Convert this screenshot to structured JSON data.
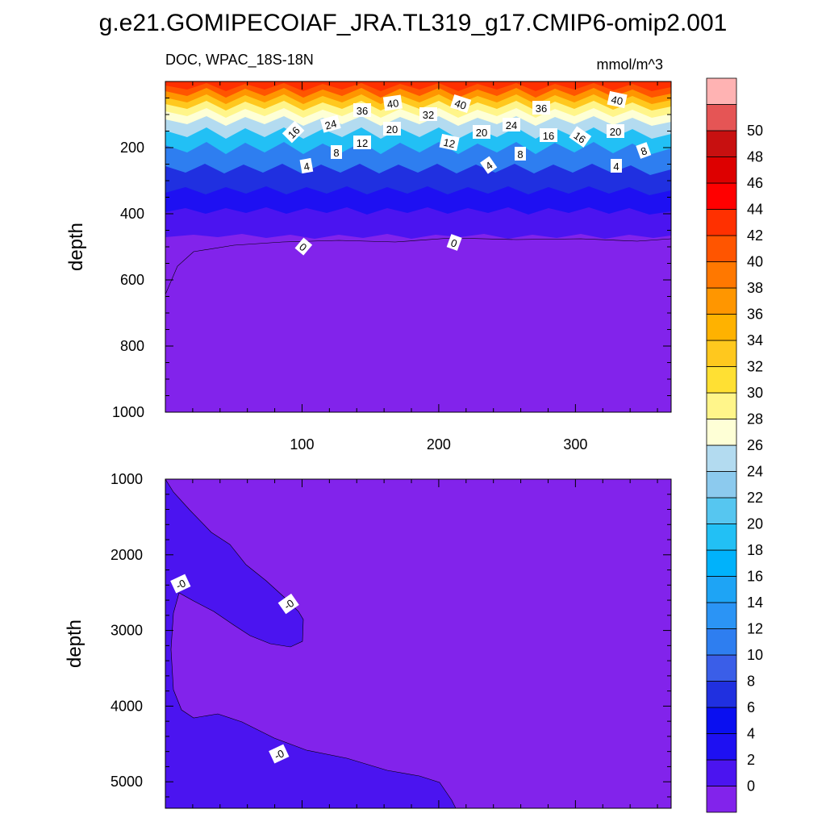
{
  "chart_data": [
    {
      "type": "heatmap",
      "title": "g.e21.GOMIPECOIAF_JRA.TL319_g17.CMIP6-omip2.001",
      "subtitle_left": "DOC, WPAC_18S-18N",
      "subtitle_right": "mmol/m^3",
      "panel": "upper",
      "ylabel": "depth",
      "xlabel": "",
      "xlim": [
        0,
        370
      ],
      "ylim": [
        1000,
        0
      ],
      "x_ticks": [
        100,
        200,
        300
      ],
      "y_ticks": [
        200,
        400,
        600,
        800,
        1000
      ],
      "contour_levels": [
        0,
        2,
        4,
        6,
        8,
        10,
        12,
        14,
        16,
        18,
        20,
        22,
        24,
        26,
        28,
        30,
        32,
        34,
        36,
        38,
        40,
        42,
        44,
        46,
        48,
        50
      ],
      "contour_labels": [
        "36",
        "40",
        "32",
        "40",
        "36",
        "40",
        "16",
        "24",
        "20",
        "20",
        "24",
        "16",
        "16",
        "20",
        "8",
        "12",
        "12",
        "8",
        "8",
        "4",
        "4",
        "4",
        "0",
        "0"
      ],
      "approx_profile": [
        {
          "depth": 0,
          "value": 44
        },
        {
          "depth": 50,
          "value": 40
        },
        {
          "depth": 100,
          "value": 32
        },
        {
          "depth": 150,
          "value": 20
        },
        {
          "depth": 200,
          "value": 10
        },
        {
          "depth": 250,
          "value": 4
        },
        {
          "depth": 300,
          "value": 1
        },
        {
          "depth": 500,
          "value": 0
        },
        {
          "depth": 1000,
          "value": -1
        }
      ]
    },
    {
      "type": "heatmap",
      "panel": "lower",
      "ylabel": "depth",
      "xlabel": "",
      "xlim": [
        0,
        370
      ],
      "ylim": [
        5350,
        1000
      ],
      "y_ticks": [
        1000,
        2000,
        3000,
        4000,
        5000
      ],
      "contour_labels": [
        "-0",
        "-0",
        "-0"
      ]
    }
  ],
  "colorbar": {
    "tick_labels": [
      "0",
      "2",
      "4",
      "6",
      "8",
      "10",
      "12",
      "14",
      "16",
      "18",
      "20",
      "22",
      "24",
      "26",
      "28",
      "30",
      "32",
      "34",
      "36",
      "38",
      "40",
      "42",
      "44",
      "46",
      "48",
      "50"
    ],
    "colors": [
      "#8223eb",
      "#4b14f0",
      "#1e10f2",
      "#0a0ff0",
      "#2030e0",
      "#3a5ee8",
      "#2e7ef0",
      "#2b94f5",
      "#1ea4f5",
      "#00b2fb",
      "#22c0f5",
      "#56c6f0",
      "#8ccaee",
      "#b3dbf0",
      "#feffd6",
      "#fff58a",
      "#ffe033",
      "#ffc81e",
      "#ffb200",
      "#ff9600",
      "#ff7800",
      "#ff5500",
      "#ff3000",
      "#ff0000",
      "#dd0000",
      "#c81010",
      "#e55555",
      "#ffb3b3"
    ]
  }
}
